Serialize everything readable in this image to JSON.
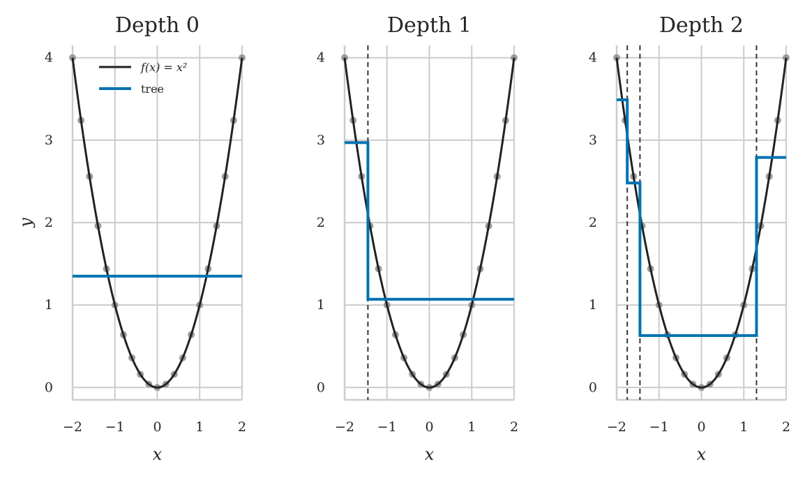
{
  "colors": {
    "curve": "#222222",
    "tree": "#0072b2",
    "points": "#8c8c8c",
    "grid": "#cccccc",
    "split": "#333333"
  },
  "legend": {
    "placement": "top",
    "curve_label": "f(x) = x²",
    "tree_label": "tree"
  },
  "chart_data": [
    {
      "type": "line",
      "title": "Depth 0",
      "xlabel": "x",
      "ylabel": "y",
      "xlim": [
        -2,
        2
      ],
      "ylim": [
        -0.15,
        4.15
      ],
      "xticks": [
        -2,
        -1,
        0,
        1,
        2
      ],
      "xtick_labels": [
        "−2",
        "−1",
        "0",
        "1",
        "2"
      ],
      "yticks": [
        0,
        1,
        2,
        3,
        4
      ],
      "ytick_labels": [
        "0",
        "1",
        "2",
        "3",
        "4"
      ],
      "grid": true,
      "curve": "f(x) = x²",
      "samples_x": [
        -2,
        -1.8,
        -1.6,
        -1.4,
        -1.2,
        -1,
        -0.8,
        -0.6,
        -0.4,
        -0.2,
        0,
        0.2,
        0.4,
        0.6,
        0.8,
        1,
        1.2,
        1.4,
        1.6,
        1.8,
        2
      ],
      "samples_y": [
        4,
        3.24,
        2.56,
        1.96,
        1.44,
        1,
        0.64,
        0.36,
        0.16,
        0.04,
        0,
        0.04,
        0.16,
        0.36,
        0.64,
        1,
        1.44,
        1.96,
        2.56,
        3.24,
        4
      ],
      "splits": [],
      "tree_steps": [
        {
          "x0": -2,
          "x1": 2,
          "y": 1.35
        }
      ],
      "show_legend": true
    },
    {
      "type": "line",
      "title": "Depth 1",
      "xlabel": "x",
      "ylabel": "",
      "xlim": [
        -2,
        2
      ],
      "ylim": [
        -0.15,
        4.15
      ],
      "xticks": [
        -2,
        -1,
        0,
        1,
        2
      ],
      "xtick_labels": [
        "−2",
        "−1",
        "0",
        "1",
        "2"
      ],
      "yticks": [
        0,
        1,
        2,
        3,
        4
      ],
      "ytick_labels": [
        "0",
        "1",
        "2",
        "3",
        "4"
      ],
      "grid": true,
      "curve": "f(x) = x²",
      "samples_x": [
        -2,
        -1.8,
        -1.6,
        -1.4,
        -1.2,
        -1,
        -0.8,
        -0.6,
        -0.4,
        -0.2,
        0,
        0.2,
        0.4,
        0.6,
        0.8,
        1,
        1.2,
        1.4,
        1.6,
        1.8,
        2
      ],
      "samples_y": [
        4,
        3.24,
        2.56,
        1.96,
        1.44,
        1,
        0.64,
        0.36,
        0.16,
        0.04,
        0,
        0.04,
        0.16,
        0.36,
        0.64,
        1,
        1.44,
        1.96,
        2.56,
        3.24,
        4
      ],
      "splits": [
        -1.45
      ],
      "tree_steps": [
        {
          "x0": -2,
          "x1": -1.45,
          "y": 2.97
        },
        {
          "x0": -1.45,
          "x1": 2,
          "y": 1.07
        }
      ],
      "show_legend": false
    },
    {
      "type": "line",
      "title": "Depth 2",
      "xlabel": "x",
      "ylabel": "",
      "xlim": [
        -2,
        2
      ],
      "ylim": [
        -0.15,
        4.15
      ],
      "xticks": [
        -2,
        -1,
        0,
        1,
        2
      ],
      "xtick_labels": [
        "−2",
        "−1",
        "0",
        "1",
        "2"
      ],
      "yticks": [
        0,
        1,
        2,
        3,
        4
      ],
      "ytick_labels": [
        "0",
        "1",
        "2",
        "3",
        "4"
      ],
      "grid": true,
      "curve": "f(x) = x²",
      "samples_x": [
        -2,
        -1.8,
        -1.6,
        -1.4,
        -1.2,
        -1,
        -0.8,
        -0.6,
        -0.4,
        -0.2,
        0,
        0.2,
        0.4,
        0.6,
        0.8,
        1,
        1.2,
        1.4,
        1.6,
        1.8,
        2
      ],
      "samples_y": [
        4,
        3.24,
        2.56,
        1.96,
        1.44,
        1,
        0.64,
        0.36,
        0.16,
        0.04,
        0,
        0.04,
        0.16,
        0.36,
        0.64,
        1,
        1.44,
        1.96,
        2.56,
        3.24,
        4
      ],
      "splits": [
        -1.75,
        -1.45,
        1.3
      ],
      "tree_steps": [
        {
          "x0": -2,
          "x1": -1.75,
          "y": 3.49
        },
        {
          "x0": -1.75,
          "x1": -1.45,
          "y": 2.48
        },
        {
          "x0": -1.45,
          "x1": 1.3,
          "y": 0.63
        },
        {
          "x0": 1.3,
          "x1": 2,
          "y": 2.79
        }
      ],
      "show_legend": false
    }
  ]
}
